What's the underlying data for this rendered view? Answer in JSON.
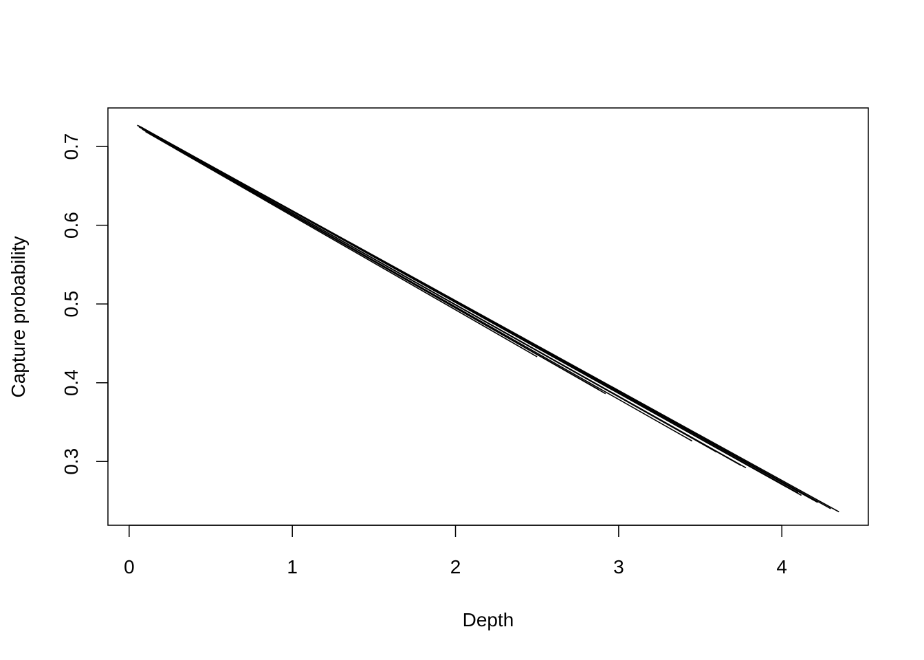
{
  "chart_data": {
    "type": "line",
    "title": "",
    "xlabel": "Depth",
    "ylabel": "Capture probability",
    "xlim": [
      -0.13,
      4.53
    ],
    "ylim": [
      0.219,
      0.749
    ],
    "x_ticks": [
      0,
      1,
      2,
      3,
      4
    ],
    "y_ticks": [
      0.3,
      0.4,
      0.5,
      0.6,
      0.7
    ],
    "x_tick_labels": [
      "0",
      "1",
      "2",
      "3",
      "4"
    ],
    "y_tick_labels": [
      "0.3",
      "0.4",
      "0.5",
      "0.6",
      "0.7"
    ],
    "grid": false,
    "legend": "none",
    "line_color": "#000000",
    "series": [
      {
        "x": [
          0.05,
          4.35
        ],
        "y": [
          0.727,
          0.236
        ]
      },
      {
        "x": [
          0.05,
          4.3
        ],
        "y": [
          0.727,
          0.24
        ]
      },
      {
        "x": [
          0.06,
          4.22
        ],
        "y": [
          0.726,
          0.248
        ]
      },
      {
        "x": [
          0.06,
          4.12
        ],
        "y": [
          0.726,
          0.257
        ]
      },
      {
        "x": [
          0.07,
          4.1
        ],
        "y": [
          0.725,
          0.26
        ]
      },
      {
        "x": [
          0.06,
          3.78
        ],
        "y": [
          0.725,
          0.292
        ]
      },
      {
        "x": [
          0.07,
          3.75
        ],
        "y": [
          0.724,
          0.295
        ]
      },
      {
        "x": [
          0.08,
          3.6
        ],
        "y": [
          0.723,
          0.312
        ]
      },
      {
        "x": [
          0.08,
          3.45
        ],
        "y": [
          0.722,
          0.326
        ]
      },
      {
        "x": [
          0.09,
          2.92
        ],
        "y": [
          0.721,
          0.386
        ]
      },
      {
        "x": [
          0.1,
          2.88
        ],
        "y": [
          0.72,
          0.391
        ]
      },
      {
        "x": [
          0.1,
          2.5
        ],
        "y": [
          0.719,
          0.433
        ]
      }
    ]
  }
}
